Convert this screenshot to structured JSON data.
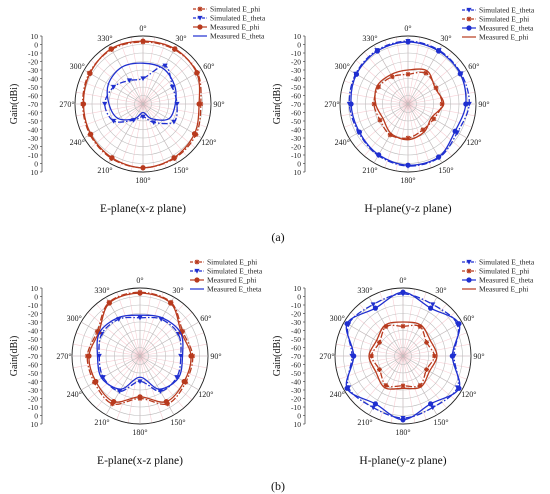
{
  "figure": {
    "rows": [
      {
        "label": "(a)",
        "panels": [
          0,
          1
        ]
      },
      {
        "label": "(b)",
        "panels": [
          2,
          3
        ]
      }
    ],
    "colors": {
      "red": "#b83a1e",
      "blue": "#1f2fd0",
      "grid": "#bdbdbd",
      "pink_spoke": "#f2a7b2"
    }
  },
  "chart_data": [
    {
      "type": "polar-line",
      "caption": "E-plane(x-z plane)",
      "ylabel": "Gain(dBi)",
      "r_range": [
        -70,
        10
      ],
      "grid_rings": [
        -70,
        -60,
        -50,
        -40,
        -30,
        -20,
        -10,
        0,
        10
      ],
      "radial_tick_labels": [
        "10",
        "0",
        "-10",
        "-20",
        "-30",
        "-40",
        "-50",
        "-60",
        "-70",
        "-60",
        "-50",
        "-40",
        "-30",
        "-20",
        "-10",
        "0",
        "10"
      ],
      "angle_labels": [
        "0°",
        "30°",
        "60°",
        "90°",
        "120°",
        "150°",
        "180°",
        "210°",
        "240°",
        "270°",
        "300°",
        "330°"
      ],
      "legend": {
        "position": "top-right",
        "entries": [
          "Simulated E_phi",
          "Simulated E_theta",
          "Measured E_phi",
          "Measured E_theta"
        ]
      },
      "angles_deg": [
        0,
        30,
        60,
        90,
        120,
        150,
        180,
        210,
        240,
        270,
        300,
        330
      ],
      "series": [
        {
          "name": "Simulated E_phi",
          "color": "#b83a1e",
          "dash": "dashdot",
          "marker": "star",
          "values": [
            3,
            4,
            4,
            -2,
            2,
            4,
            5,
            4,
            2,
            1,
            3,
            4
          ]
        },
        {
          "name": "Simulated E_theta",
          "color": "#1f2fd0",
          "dash": "dashdot",
          "marker": "triangle",
          "values": [
            -40,
            -18,
            -30,
            -30,
            -28,
            -45,
            -55,
            -48,
            -30,
            -25,
            -30,
            -38
          ]
        },
        {
          "name": "Measured E_phi",
          "color": "#b83a1e",
          "dash": "solid",
          "marker": "circle",
          "values": [
            4,
            5,
            3,
            -4,
            0,
            3,
            5,
            3,
            1,
            0,
            2,
            5
          ]
        },
        {
          "name": "Measured E_theta",
          "color": "#1f2fd0",
          "dash": "solid",
          "marker": "none",
          "values": [
            -22,
            -22,
            -27,
            -32,
            -35,
            -50,
            -60,
            -50,
            -36,
            -30,
            -23,
            -20
          ]
        }
      ]
    },
    {
      "type": "polar-line",
      "caption": "H-plane(y-z plane)",
      "ylabel": "Gain(dBi)",
      "r_range": [
        -70,
        10
      ],
      "grid_rings": [
        -70,
        -60,
        -50,
        -40,
        -30,
        -20,
        -10,
        0,
        10
      ],
      "radial_tick_labels": [
        "10",
        "0",
        "-10",
        "-20",
        "-30",
        "-40",
        "-50",
        "-60",
        "-70",
        "-60",
        "-50",
        "-40",
        "-30",
        "-20",
        "-10",
        "0",
        "10"
      ],
      "angle_labels": [
        "0°",
        "30°",
        "60°",
        "90°",
        "120°",
        "150°",
        "180°",
        "210°",
        "240°",
        "270°",
        "300°",
        "330°"
      ],
      "legend": {
        "position": "top-right",
        "entries": [
          "Simulated E_theta",
          "Simulated E_phi",
          "Measured E_theta",
          "Measured E_phi"
        ]
      },
      "angles_deg": [
        0,
        30,
        60,
        90,
        120,
        150,
        180,
        210,
        240,
        270,
        300,
        330
      ],
      "series": [
        {
          "name": "Simulated E_theta",
          "color": "#1f2fd0",
          "dash": "dashdot",
          "marker": "triangle",
          "values": [
            4,
            3,
            2,
            2,
            -3,
            3,
            3,
            0,
            -3,
            -1,
            1,
            3
          ]
        },
        {
          "name": "Simulated E_phi",
          "color": "#b83a1e",
          "dash": "dashdot",
          "marker": "star",
          "values": [
            -35,
            -28,
            -32,
            -30,
            -35,
            -35,
            -30,
            -28,
            -32,
            -30,
            -30,
            -33
          ]
        },
        {
          "name": "Measured E_theta",
          "color": "#1f2fd0",
          "dash": "solid",
          "marker": "circle",
          "values": [
            3,
            2,
            1,
            -2,
            -6,
            2,
            2,
            -1,
            -4,
            -3,
            0,
            2
          ]
        },
        {
          "name": "Measured E_phi",
          "color": "#b83a1e",
          "dash": "solid",
          "marker": "none",
          "values": [
            -30,
            -25,
            -33,
            -28,
            -38,
            -32,
            -28,
            -30,
            -36,
            -32,
            -28,
            -30
          ]
        }
      ]
    },
    {
      "type": "polar-line",
      "caption": "E-plane(x-z plane)",
      "ylabel": "Gain(dBi)",
      "r_range": [
        -70,
        10
      ],
      "grid_rings": [
        -70,
        -60,
        -50,
        -40,
        -30,
        -20,
        -10,
        0,
        10
      ],
      "radial_tick_labels": [
        "10",
        "0",
        "-10",
        "-20",
        "-30",
        "-40",
        "-50",
        "-60",
        "-70",
        "-60",
        "-50",
        "-40",
        "-30",
        "-20",
        "-10",
        "0",
        "10"
      ],
      "angle_labels": [
        "0°",
        "30°",
        "60°",
        "90°",
        "120°",
        "150°",
        "180°",
        "210°",
        "240°",
        "270°",
        "300°",
        "330°"
      ],
      "legend": {
        "position": "top-right",
        "entries": [
          "Simulated E_phi",
          "Simulated E_theta",
          "Measured E_phi",
          "Measured E_theta"
        ]
      },
      "angles_deg": [
        0,
        30,
        60,
        90,
        120,
        150,
        180,
        210,
        240,
        270,
        300,
        330
      ],
      "series": [
        {
          "name": "Simulated E_phi",
          "color": "#b83a1e",
          "dash": "dashdot",
          "marker": "star",
          "values": [
            5,
            3,
            -12,
            -8,
            -8,
            -5,
            -20,
            -5,
            -8,
            -8,
            -12,
            3
          ]
        },
        {
          "name": "Simulated E_theta",
          "color": "#1f2fd0",
          "dash": "dashdot",
          "marker": "triangle",
          "values": [
            -25,
            -20,
            -18,
            -22,
            -20,
            -22,
            -40,
            -22,
            -20,
            -22,
            -18,
            -20
          ]
        },
        {
          "name": "Measured E_phi",
          "color": "#b83a1e",
          "dash": "solid",
          "marker": "circle",
          "values": [
            4,
            2,
            -14,
            -10,
            -10,
            -8,
            -22,
            -8,
            -10,
            -10,
            -14,
            2
          ]
        },
        {
          "name": "Measured E_theta",
          "color": "#1f2fd0",
          "dash": "solid",
          "marker": "none",
          "values": [
            -22,
            -18,
            -15,
            -20,
            -18,
            -25,
            -45,
            -25,
            -18,
            -20,
            -15,
            -18
          ]
        }
      ]
    },
    {
      "type": "polar-line",
      "caption": "H-plane(y-z plane)",
      "ylabel": "Gain(dBi)",
      "r_range": [
        -70,
        10
      ],
      "grid_rings": [
        -70,
        -60,
        -50,
        -40,
        -30,
        -20,
        -10,
        0,
        10
      ],
      "radial_tick_labels": [
        "10",
        "0",
        "-10",
        "-20",
        "-30",
        "-40",
        "-50",
        "-60",
        "-70",
        "-60",
        "-50",
        "-40",
        "-30",
        "-20",
        "-10",
        "0",
        "10"
      ],
      "angle_labels": [
        "0°",
        "30°",
        "60°",
        "90°",
        "120°",
        "150°",
        "180°",
        "210°",
        "240°",
        "270°",
        "300°",
        "330°"
      ],
      "legend": {
        "position": "top-right",
        "entries": [
          "Simulated E_theta",
          "Simulated E_phi",
          "Measured E_theta",
          "Measured E_phi"
        ]
      },
      "angles_deg": [
        0,
        30,
        60,
        90,
        120,
        150,
        180,
        210,
        240,
        270,
        300,
        330
      ],
      "series": [
        {
          "name": "Simulated E_theta",
          "color": "#1f2fd0",
          "dash": "dashdot",
          "marker": "triangle",
          "values": [
            3,
            0,
            4,
            -10,
            4,
            0,
            3,
            0,
            4,
            -10,
            4,
            0
          ]
        },
        {
          "name": "Simulated E_phi",
          "color": "#b83a1e",
          "dash": "dashdot",
          "marker": "star",
          "values": [
            -35,
            -30,
            -38,
            -33,
            -38,
            -30,
            -35,
            -30,
            -38,
            -33,
            -38,
            -30
          ]
        },
        {
          "name": "Measured E_theta",
          "color": "#1f2fd0",
          "dash": "solid",
          "marker": "circle",
          "values": [
            5,
            -5,
            6,
            -12,
            6,
            -5,
            5,
            -5,
            6,
            -12,
            6,
            -5
          ]
        },
        {
          "name": "Measured E_phi",
          "color": "#b83a1e",
          "dash": "solid",
          "marker": "none",
          "values": [
            -30,
            -28,
            -33,
            -30,
            -34,
            -28,
            -32,
            -27,
            -33,
            -30,
            -34,
            -28
          ]
        }
      ]
    }
  ]
}
